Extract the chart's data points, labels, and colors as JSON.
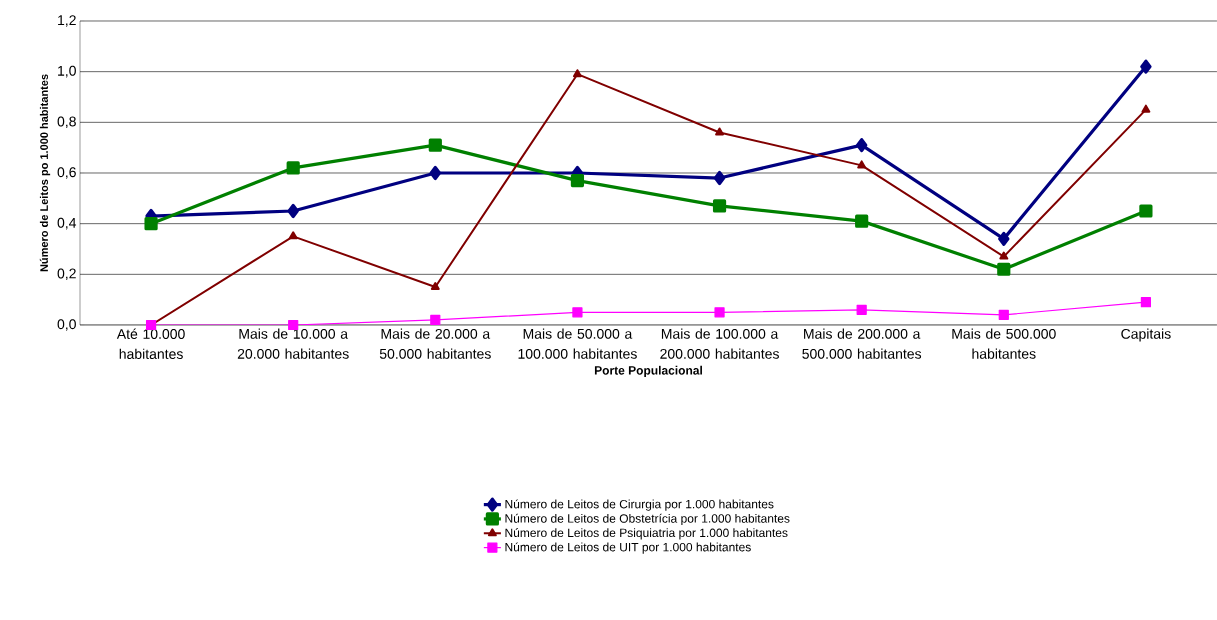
{
  "chart_data": {
    "type": "line",
    "xlabel": "Porte Populacional",
    "ylabel": "Número de Leitos po 1.000 habitantes",
    "categories": [
      "Até 10.000 habitantes",
      "Mais de 10.000 a 20.000 habitantes",
      "Mais de 20.000 a 50.000 habitantes",
      "Mais de 50.000 a 100.000 habitantes",
      "Mais de 100.000 a 200.000 habitantes",
      "Mais de 200.000 a 500.000 habitantes",
      "Mais de 500.000 habitantes",
      "Capitais"
    ],
    "series": [
      {
        "name": "Número de Leitos de Cirurgia por 1.000 habitantes",
        "color": "#000080",
        "marker": "diamond",
        "values": [
          0.43,
          0.45,
          0.6,
          0.6,
          0.58,
          0.71,
          0.34,
          1.02
        ]
      },
      {
        "name": "Número de Leitos de Obstetrícia por 1.000 habitantes",
        "color": "#008000",
        "marker": "square",
        "values": [
          0.4,
          0.62,
          0.71,
          0.57,
          0.47,
          0.41,
          0.22,
          0.45
        ]
      },
      {
        "name": "Número de Leitos de Psiquiatria por 1.000 habitantes",
        "color": "#800000",
        "marker": "triangle",
        "values": [
          0.0,
          0.35,
          0.15,
          0.99,
          0.76,
          0.63,
          0.27,
          0.85
        ]
      },
      {
        "name": "Número de Leitos de UIT por 1.000 habitantes",
        "color": "#ff00ff",
        "marker": "square",
        "values": [
          0.0,
          0.0,
          0.02,
          0.05,
          0.05,
          0.06,
          0.04,
          0.09
        ]
      }
    ],
    "ylim": [
      0,
      1.2
    ],
    "yticks": [
      {
        "value": 0,
        "label": "0,0"
      },
      {
        "value": 0.2,
        "label": "0,2"
      },
      {
        "value": 0.4,
        "label": "0,4"
      },
      {
        "value": 0.6,
        "label": "0,6"
      },
      {
        "value": 0.8,
        "label": "0,8"
      },
      {
        "value": 1.0,
        "label": "1,0"
      },
      {
        "value": 1.2,
        "label": "1,2"
      }
    ],
    "grid": "y",
    "legend": "bottom",
    "line_style": "solid"
  }
}
